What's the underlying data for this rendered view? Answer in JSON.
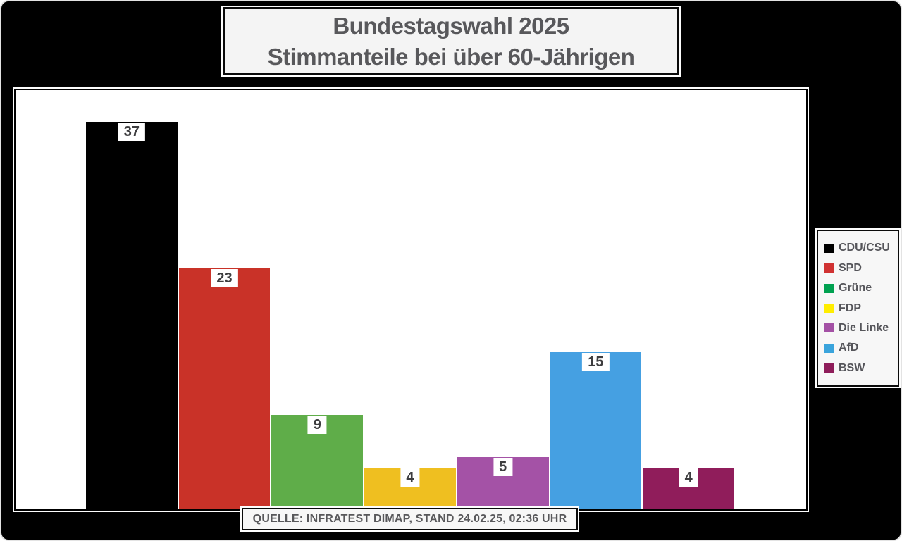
{
  "title_box": {
    "line1": "Bundestagswahl 2025",
    "line2": "Stimmanteile bei über 60-Jährigen"
  },
  "source_box": {
    "text": "QUELLE: INFRATEST DIMAP, STAND 24.02.25, 02:36 UHR"
  },
  "legend": {
    "items": [
      {
        "label": "CDU/CSU",
        "color": "#000000"
      },
      {
        "label": "SPD",
        "color": "#d03232"
      },
      {
        "label": "Grüne",
        "color": "#00a150"
      },
      {
        "label": "FDP",
        "color": "#ffed00"
      },
      {
        "label": "Die Linke",
        "color": "#a451a5"
      },
      {
        "label": "AfD",
        "color": "#3aa4dc"
      },
      {
        "label": "BSW",
        "color": "#8e1d5a"
      }
    ]
  },
  "chart_data": {
    "type": "bar",
    "title": "Bundestagswahl 2025 – Stimmanteile bei über 60-Jährigen",
    "categories": [
      "CDU/CSU",
      "SPD",
      "Grüne",
      "FDP",
      "Die Linke",
      "AfD",
      "BSW"
    ],
    "values": [
      37,
      23,
      9,
      4,
      5,
      15,
      4
    ],
    "value_labels": [
      "37",
      "23",
      "9",
      "4",
      "5",
      "15",
      "4"
    ],
    "bar_colors": [
      "#000000",
      "#c93228",
      "#5fad49",
      "#efbf20",
      "#a452a6",
      "#45a0e2",
      "#901d5b"
    ],
    "ylim": [
      0,
      40
    ],
    "grid": false,
    "legend_position": "right",
    "xlabel": "",
    "ylabel": "",
    "source": "QUELLE: INFRATEST DIMAP, STAND 24.02.25, 02:36 UHR"
  },
  "colors": {
    "page_background": "#000000",
    "frame_border": "#e3e3e3",
    "panel_background": "#f4f4f4",
    "text": "#58585b",
    "badge_background": "#ffffff",
    "badge_text": "#3d3d3f"
  }
}
